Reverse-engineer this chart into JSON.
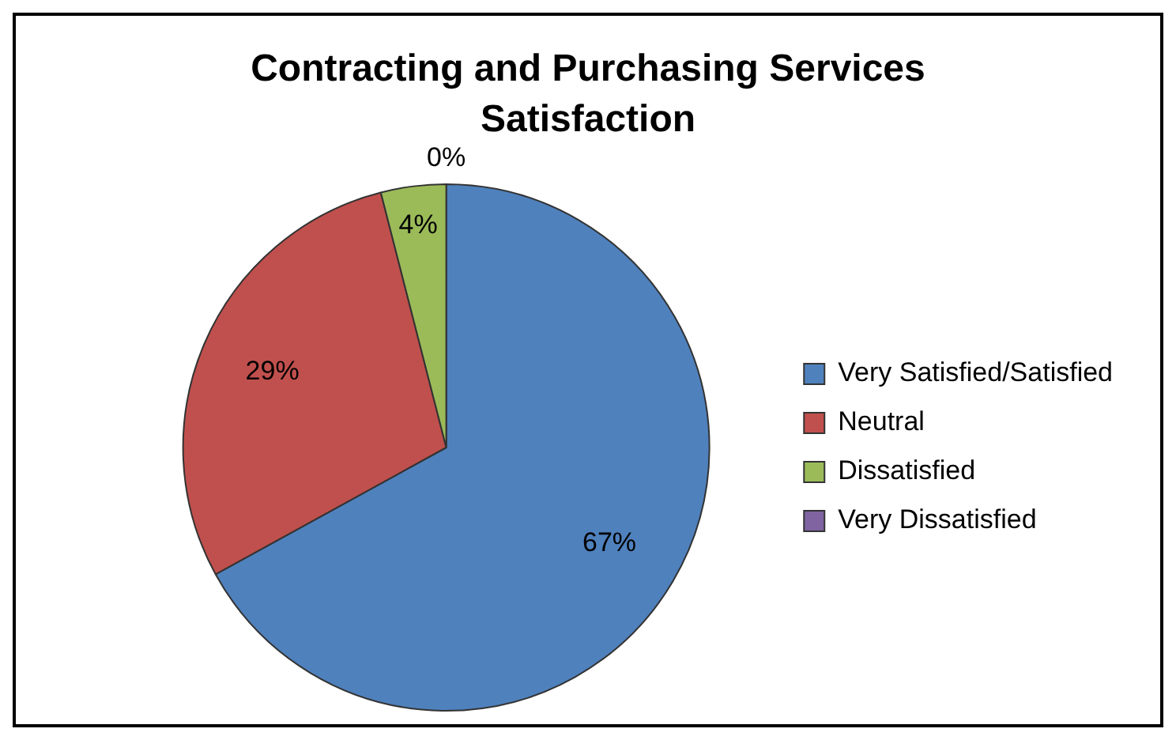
{
  "chart_data": {
    "type": "pie",
    "title": "Contracting and Purchasing Services Satisfaction",
    "categories": [
      "Very Satisfied/Satisfied",
      "Neutral",
      "Dissatisfied",
      "Very Dissatisfied"
    ],
    "values": [
      67,
      29,
      4,
      0
    ],
    "colors": [
      "#4f81bd",
      "#c0504d",
      "#9bbb59",
      "#8064a2"
    ],
    "value_labels": [
      "67%",
      "29%",
      "4%",
      "0%"
    ],
    "legend": "right"
  }
}
